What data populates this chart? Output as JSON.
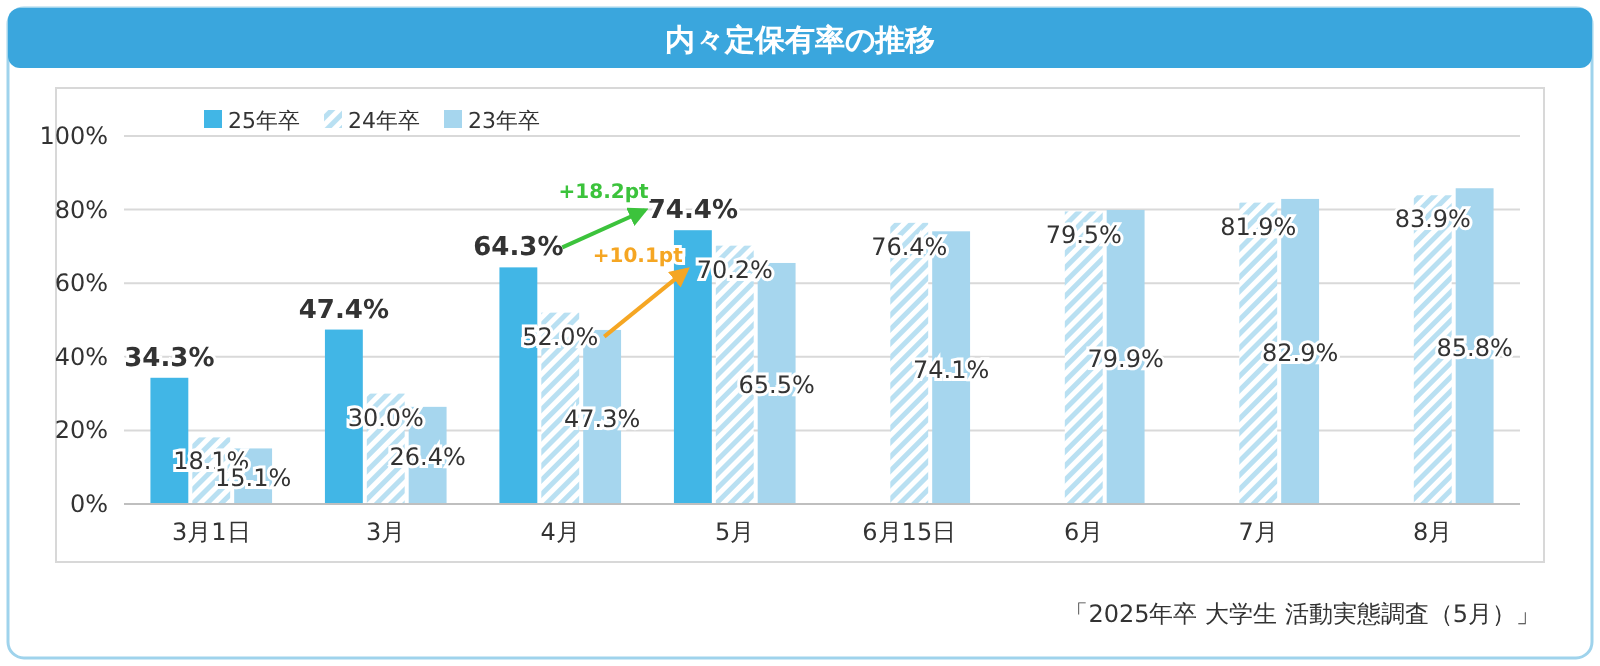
{
  "chart_data": {
    "type": "bar",
    "title": "内々定保有率の推移",
    "categories": [
      "3月1日",
      "3月",
      "4月",
      "5月",
      "6月15日",
      "6月",
      "7月",
      "8月"
    ],
    "series": [
      {
        "name": "25年卒",
        "color": "#41b6e6",
        "values": [
          34.3,
          47.4,
          64.3,
          74.4,
          null,
          null,
          null,
          null
        ],
        "value_labels": [
          "34.3%",
          "47.4%",
          "64.3%",
          "74.4%",
          null,
          null,
          null,
          null
        ]
      },
      {
        "name": "24年卒",
        "color": "#b9e0f2",
        "values": [
          18.1,
          30.0,
          52.0,
          70.2,
          76.4,
          79.5,
          81.9,
          83.9
        ],
        "value_labels": [
          "18.1%",
          "30.0%",
          "52.0%",
          "70.2%",
          "76.4%",
          "79.5%",
          "81.9%",
          "83.9%"
        ]
      },
      {
        "name": "23年卒",
        "color": "#a6d6ee",
        "values": [
          15.1,
          26.4,
          47.3,
          65.5,
          74.1,
          79.9,
          82.9,
          85.8
        ],
        "value_labels": [
          "15.1%",
          "26.4%",
          "47.3%",
          "65.5%",
          "74.1%",
          "79.9%",
          "82.9%",
          "85.8%"
        ]
      }
    ],
    "ylim": [
      0,
      100
    ],
    "yticks": [
      {
        "value": 0,
        "label": "0%"
      },
      {
        "value": 20,
        "label": "20%"
      },
      {
        "value": 40,
        "label": "40%"
      },
      {
        "value": 60,
        "label": "60%"
      },
      {
        "value": 80,
        "label": "80%"
      },
      {
        "value": 100,
        "label": "100%"
      }
    ],
    "grid": "y",
    "legend": "top left",
    "annotations": [
      "+18.2pt",
      "+10.1pt",
      "「2025年卒 大学生 活動実態調査（5月）」"
    ]
  }
}
